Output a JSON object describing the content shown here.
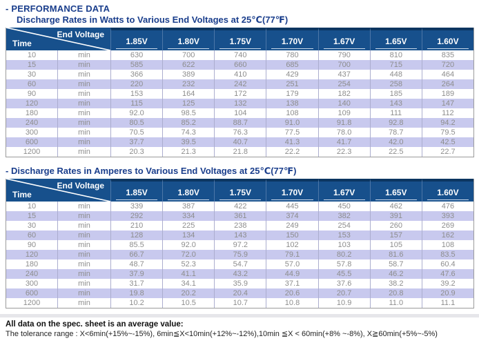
{
  "page": {
    "title": "- PERFORMANCE DATA",
    "footer_line1": "All data on the spec. sheet is an average value:",
    "footer_line2": "The tolerance range : X<6min(+15%~-15%), 6min≦X<10min(+12%~-12%),10min ≦X < 60min(+8% ~-8%), X≧60min(+5%~-5%)"
  },
  "colors": {
    "header_navy": "#17508c",
    "header_top_edge": "#0c3560",
    "title_navy": "#1a3e8c",
    "row_alt_lavender": "#c8c9ee",
    "cell_text_gray": "#8d8d8d"
  },
  "tables": [
    {
      "title": "Discharge Rates in Watts to Various End Voltages at 25℃(77℉)",
      "corner_top": "End Voltage",
      "corner_bottom": "Time",
      "columns": [
        "1.85V",
        "1.80V",
        "1.75V",
        "1.70V",
        "1.67V",
        "1.65V",
        "1.60V"
      ],
      "rows": [
        {
          "time": "10",
          "unit": "min",
          "values": [
            "630",
            "700",
            "740",
            "780",
            "790",
            "810",
            "835"
          ]
        },
        {
          "time": "15",
          "unit": "min",
          "values": [
            "585",
            "622",
            "660",
            "685",
            "700",
            "715",
            "720"
          ]
        },
        {
          "time": "30",
          "unit": "min",
          "values": [
            "366",
            "389",
            "410",
            "429",
            "437",
            "448",
            "464"
          ]
        },
        {
          "time": "60",
          "unit": "min",
          "values": [
            "220",
            "232",
            "242",
            "251",
            "254",
            "258",
            "264"
          ]
        },
        {
          "time": "90",
          "unit": "min",
          "values": [
            "153",
            "164",
            "172",
            "179",
            "182",
            "185",
            "189"
          ]
        },
        {
          "time": "120",
          "unit": "min",
          "values": [
            "115",
            "125",
            "132",
            "138",
            "140",
            "143",
            "147"
          ]
        },
        {
          "time": "180",
          "unit": "min",
          "values": [
            "92.0",
            "98.5",
            "104",
            "108",
            "109",
            "111",
            "112"
          ]
        },
        {
          "time": "240",
          "unit": "min",
          "values": [
            "80.5",
            "85.2",
            "88.7",
            "91.0",
            "91.8",
            "92.8",
            "94.2"
          ]
        },
        {
          "time": "300",
          "unit": "min",
          "values": [
            "70.5",
            "74.3",
            "76.3",
            "77.5",
            "78.0",
            "78.7",
            "79.5"
          ]
        },
        {
          "time": "600",
          "unit": "min",
          "values": [
            "37.7",
            "39.5",
            "40.7",
            "41.3",
            "41.7",
            "42.0",
            "42.5"
          ]
        },
        {
          "time": "1200",
          "unit": "min",
          "values": [
            "20.3",
            "21.3",
            "21.8",
            "22.2",
            "22.3",
            "22.5",
            "22.7"
          ]
        }
      ]
    },
    {
      "title": "- Discharge Rates in Amperes to Various End Voltages at 25℃(77℉)",
      "corner_top": "End Voltage",
      "corner_bottom": "Time",
      "columns": [
        "1.85V",
        "1.80V",
        "1.75V",
        "1.70V",
        "1.67V",
        "1.65V",
        "1.60V"
      ],
      "rows": [
        {
          "time": "10",
          "unit": "min",
          "values": [
            "339",
            "387",
            "422",
            "445",
            "450",
            "462",
            "476"
          ]
        },
        {
          "time": "15",
          "unit": "min",
          "values": [
            "292",
            "334",
            "361",
            "374",
            "382",
            "391",
            "393"
          ]
        },
        {
          "time": "30",
          "unit": "min",
          "values": [
            "210",
            "225",
            "238",
            "249",
            "254",
            "260",
            "269"
          ]
        },
        {
          "time": "60",
          "unit": "min",
          "values": [
            "128",
            "134",
            "143",
            "150",
            "153",
            "157",
            "162"
          ]
        },
        {
          "time": "90",
          "unit": "min",
          "values": [
            "85.5",
            "92.0",
            "97.2",
            "102",
            "103",
            "105",
            "108"
          ]
        },
        {
          "time": "120",
          "unit": "min",
          "values": [
            "66.7",
            "72.0",
            "75.9",
            "79.1",
            "80.2",
            "81.6",
            "83.5"
          ]
        },
        {
          "time": "180",
          "unit": "min",
          "values": [
            "48.7",
            "52.3",
            "54.7",
            "57.0",
            "57.8",
            "58.7",
            "60.4"
          ]
        },
        {
          "time": "240",
          "unit": "min",
          "values": [
            "37.9",
            "41.1",
            "43.2",
            "44.9",
            "45.5",
            "46.2",
            "47.6"
          ]
        },
        {
          "time": "300",
          "unit": "min",
          "values": [
            "31.7",
            "34.1",
            "35.9",
            "37.1",
            "37.6",
            "38.2",
            "39.2"
          ]
        },
        {
          "time": "600",
          "unit": "min",
          "values": [
            "19.8",
            "20.2",
            "20.4",
            "20.6",
            "20.7",
            "20.8",
            "20.9"
          ]
        },
        {
          "time": "1200",
          "unit": "min",
          "values": [
            "10.2",
            "10.5",
            "10.7",
            "10.8",
            "10.9",
            "11.0",
            "11.1"
          ]
        }
      ]
    }
  ]
}
